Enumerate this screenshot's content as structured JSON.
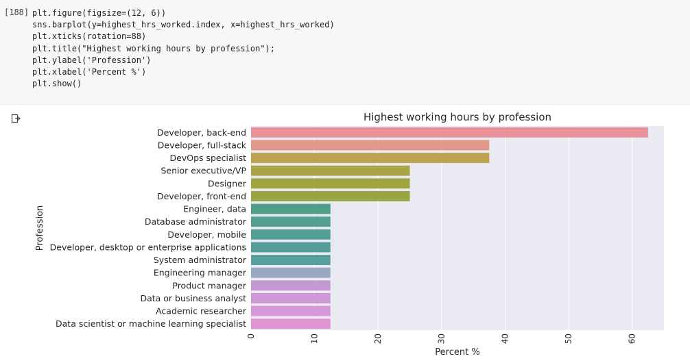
{
  "cell": {
    "execution_count": "[188]",
    "code_lines": [
      "plt.figure(figsize=(12, 6))",
      "sns.barplot(y=highest_hrs_worked.index, x=highest_hrs_worked)",
      "plt.xticks(rotation=88)",
      "plt.title(\"Highest working hours by profession\");",
      "plt.ylabel('Profession')",
      "plt.xlabel('Percent %')",
      "plt.show()"
    ]
  },
  "output": {
    "icon": "output-redirect-icon"
  },
  "chart_data": {
    "type": "bar",
    "orientation": "horizontal",
    "title": "Highest working hours by profession",
    "xlabel": "Percent %",
    "ylabel": "Profession",
    "xlim": [
      0,
      65
    ],
    "xticks": [
      0,
      10,
      20,
      30,
      40,
      50,
      60
    ],
    "xtick_rotation": 88,
    "grid": true,
    "background": "#eaeaf2",
    "categories": [
      "Developer, back-end",
      "Developer, full-stack",
      "DevOps specialist",
      "Senior executive/VP",
      "Designer",
      "Developer, front-end",
      "Engineer, data",
      "Database administrator",
      "Developer, mobile",
      "Developer, desktop or enterprise applications",
      "System administrator",
      "Engineering manager",
      "Product manager",
      "Data or business analyst",
      "Academic researcher",
      "Data scientist or machine learning specialist"
    ],
    "values": [
      62.5,
      37.5,
      37.5,
      25,
      25,
      25,
      12.5,
      12.5,
      12.5,
      12.5,
      12.5,
      12.5,
      12.5,
      12.5,
      12.5,
      12.5
    ],
    "colors": [
      "#e8919a",
      "#e0988a",
      "#bfa24f",
      "#a9a444",
      "#a0a440",
      "#99a443",
      "#4f9e86",
      "#52a08d",
      "#52a094",
      "#549d98",
      "#5a9d9f",
      "#9aa8c4",
      "#c39ad6",
      "#d197d9",
      "#d996d8",
      "#e095d2"
    ]
  }
}
